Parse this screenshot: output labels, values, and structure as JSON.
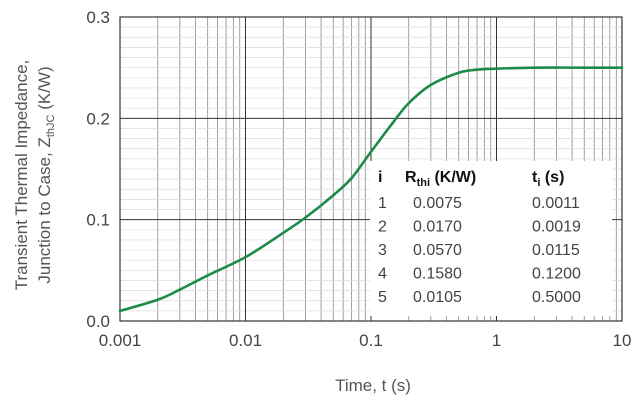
{
  "chart_data": {
    "type": "line",
    "xscale": "log",
    "xlim": [
      0.001,
      10
    ],
    "ylim": [
      0,
      0.3
    ],
    "xlabel": "Time, t (s)",
    "ylabel_line1": "Transient Thermal Impedance,",
    "ylabel_line2_main": "Junction to Case, Z",
    "ylabel_line2_sub": "thJC",
    "ylabel_line2_unit": " (K/W)",
    "x_ticks": [
      {
        "value": 0.001,
        "label": "0.001"
      },
      {
        "value": 0.01,
        "label": "0.01"
      },
      {
        "value": 0.1,
        "label": "0.1"
      },
      {
        "value": 1,
        "label": "1"
      },
      {
        "value": 10,
        "label": "10"
      }
    ],
    "y_ticks": [
      {
        "value": 0,
        "label": "0.0"
      },
      {
        "value": 0.1,
        "label": "0.1"
      },
      {
        "value": 0.2,
        "label": "0.2"
      },
      {
        "value": 0.3,
        "label": "0.3"
      }
    ],
    "grid": true,
    "line_color": "#1e8a4a",
    "series": [
      {
        "x": [
          0.001,
          0.002,
          0.003,
          0.005,
          0.01,
          0.02,
          0.03,
          0.05,
          0.07,
          0.1,
          0.15,
          0.2,
          0.3,
          0.5,
          0.7,
          1,
          2,
          5,
          10
        ],
        "y": [
          0.01,
          0.021,
          0.031,
          0.045,
          0.063,
          0.087,
          0.102,
          0.124,
          0.141,
          0.167,
          0.196,
          0.215,
          0.233,
          0.245,
          0.248,
          0.249,
          0.25,
          0.25,
          0.25
        ]
      }
    ],
    "table": {
      "headers": {
        "i": "i",
        "r_main": "R",
        "r_sub": "thi",
        "r_unit": " (K/W)",
        "t_main": "t",
        "t_sub": "i",
        "t_unit": " (s)"
      },
      "rows": [
        {
          "i": "1",
          "r": "0.0075",
          "t": "0.0011"
        },
        {
          "i": "2",
          "r": "0.0170",
          "t": "0.0019"
        },
        {
          "i": "3",
          "r": "0.0570",
          "t": "0.0115"
        },
        {
          "i": "4",
          "r": "0.1580",
          "t": "0.1200"
        },
        {
          "i": "5",
          "r": "0.0105",
          "t": "0.5000"
        }
      ]
    }
  }
}
